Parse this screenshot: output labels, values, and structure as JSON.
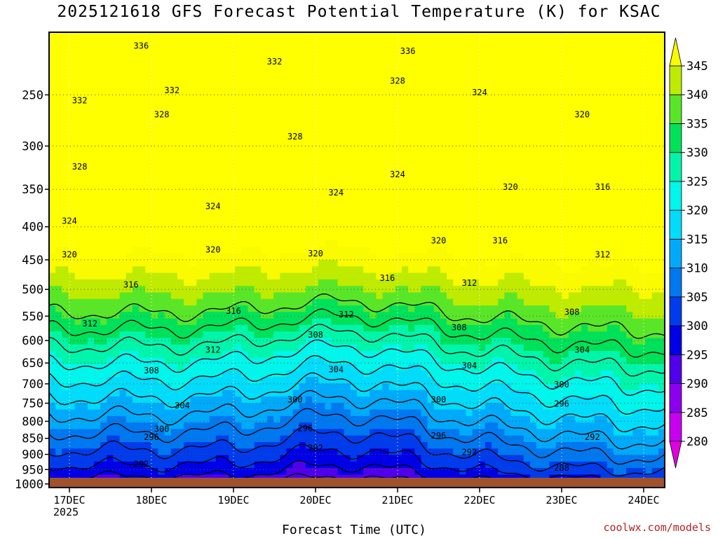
{
  "title": "2025121618 GFS Forecast Potential Temperature (K) for KSAC",
  "credit": "coolwx.com/models",
  "chart_data": {
    "type": "heatmap",
    "title": "2025121618 GFS Forecast Potential Temperature (K) for KSAC",
    "xlabel": "Forecast Time (UTC)",
    "ylabel": "",
    "x_ticks": [
      "17DEC",
      "18DEC",
      "19DEC",
      "20DEC",
      "21DEC",
      "22DEC",
      "23DEC",
      "24DEC"
    ],
    "x_year": "2025",
    "y_ticks": [
      250,
      300,
      350,
      400,
      450,
      500,
      550,
      600,
      650,
      700,
      750,
      800,
      850,
      900,
      950,
      1000
    ],
    "y_range": [
      1013,
      200
    ],
    "y_scale": "log-pressure",
    "colorbar_ticks": [
      280,
      285,
      290,
      295,
      300,
      305,
      310,
      315,
      320,
      325,
      330,
      335,
      340,
      345
    ],
    "colorbar_range": [
      275,
      350
    ],
    "grid": true,
    "contour_levels": [
      288,
      292,
      296,
      300,
      304,
      308,
      312,
      316,
      320,
      324,
      328,
      332,
      336
    ],
    "contour_labels": [
      {
        "value": 336,
        "x": "17DEC 21Z",
        "y": 210
      },
      {
        "value": 336,
        "x": "21DEC 03Z",
        "y": 214
      },
      {
        "value": 332,
        "x": "19DEC 12Z",
        "y": 222
      },
      {
        "value": 328,
        "x": "21DEC 00Z",
        "y": 238
      },
      {
        "value": 324,
        "x": "22DEC 00Z",
        "y": 248
      },
      {
        "value": 332,
        "x": "17DEC 03Z",
        "y": 255
      },
      {
        "value": 332,
        "x": "18DEC 06Z",
        "y": 246
      },
      {
        "value": 328,
        "x": "18DEC 03Z",
        "y": 268
      },
      {
        "value": 320,
        "x": "23DEC 06Z",
        "y": 268
      },
      {
        "value": 328,
        "x": "19DEC 18Z",
        "y": 290
      },
      {
        "value": 328,
        "x": "17DEC 03Z",
        "y": 323
      },
      {
        "value": 324,
        "x": "21DEC 00Z",
        "y": 332
      },
      {
        "value": 320,
        "x": "22DEC 09Z",
        "y": 347
      },
      {
        "value": 316,
        "x": "23DEC 12Z",
        "y": 347
      },
      {
        "value": 324,
        "x": "20DEC 06Z",
        "y": 354
      },
      {
        "value": 324,
        "x": "18DEC 18Z",
        "y": 372
      },
      {
        "value": 324,
        "x": "17DEC 00Z",
        "y": 392
      },
      {
        "value": 320,
        "x": "21DEC 12Z",
        "y": 420
      },
      {
        "value": 316,
        "x": "22DEC 06Z",
        "y": 420
      },
      {
        "value": 320,
        "x": "18DEC 18Z",
        "y": 434
      },
      {
        "value": 320,
        "x": "20DEC 00Z",
        "y": 440
      },
      {
        "value": 320,
        "x": "17DEC 00Z",
        "y": 442
      },
      {
        "value": 312,
        "x": "23DEC 12Z",
        "y": 442
      },
      {
        "value": 316,
        "x": "20DEC 21Z",
        "y": 480
      },
      {
        "value": 312,
        "x": "21DEC 21Z",
        "y": 489
      },
      {
        "value": 316,
        "x": "17DEC 18Z",
        "y": 492
      },
      {
        "value": 308,
        "x": "23DEC 03Z",
        "y": 542
      },
      {
        "value": 316,
        "x": "19DEC 00Z",
        "y": 540
      },
      {
        "value": 312,
        "x": "20DEC 09Z",
        "y": 547
      },
      {
        "value": 312,
        "x": "17DEC 06Z",
        "y": 565
      },
      {
        "value": 308,
        "x": "21DEC 18Z",
        "y": 573
      },
      {
        "value": 308,
        "x": "20DEC 00Z",
        "y": 588
      },
      {
        "value": 304,
        "x": "23DEC 06Z",
        "y": 620
      },
      {
        "value": 312,
        "x": "18DEC 18Z",
        "y": 620
      },
      {
        "value": 304,
        "x": "21DEC 21Z",
        "y": 656
      },
      {
        "value": 304,
        "x": "20DEC 06Z",
        "y": 665
      },
      {
        "value": 308,
        "x": "18DEC 00Z",
        "y": 668
      },
      {
        "value": 300,
        "x": "23DEC 00Z",
        "y": 702
      },
      {
        "value": 296,
        "x": "23DEC 00Z",
        "y": 752
      },
      {
        "value": 300,
        "x": "19DEC 18Z",
        "y": 741
      },
      {
        "value": 300,
        "x": "21DEC 12Z",
        "y": 741
      },
      {
        "value": 304,
        "x": "18DEC 09Z",
        "y": 756
      },
      {
        "value": 300,
        "x": "18DEC 03Z",
        "y": 822
      },
      {
        "value": 296,
        "x": "18DEC 00Z",
        "y": 846
      },
      {
        "value": 296,
        "x": "19DEC 21Z",
        "y": 820
      },
      {
        "value": 296,
        "x": "21DEC 12Z",
        "y": 842
      },
      {
        "value": 292,
        "x": "23DEC 09Z",
        "y": 846
      },
      {
        "value": 292,
        "x": "20DEC 00Z",
        "y": 880
      },
      {
        "value": 292,
        "x": "21DEC 21Z",
        "y": 893
      },
      {
        "value": 292,
        "x": "17DEC 21Z",
        "y": 932
      },
      {
        "value": 288,
        "x": "23DEC 00Z",
        "y": 945
      }
    ],
    "surface_fill": "#a0522d"
  }
}
